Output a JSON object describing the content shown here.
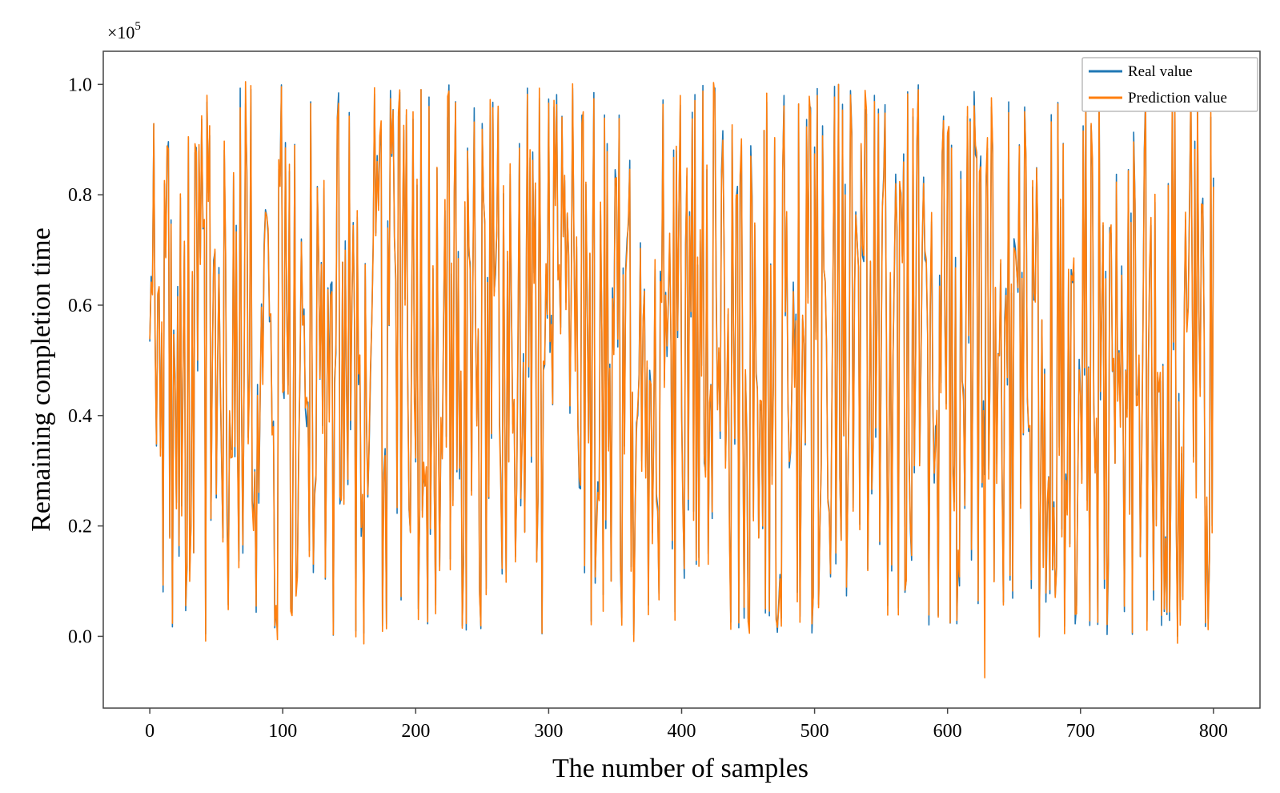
{
  "chart_data": {
    "type": "line",
    "xlabel": "The number of samples",
    "ylabel": "Remaining completion time",
    "y_offset_label": "×10",
    "y_offset_exponent": "5",
    "xlim": [
      -35,
      835
    ],
    "ylim": [
      -0.13,
      1.06
    ],
    "x_ticks": [
      0,
      100,
      200,
      300,
      400,
      500,
      600,
      700,
      800
    ],
    "y_ticks": [
      0.0,
      0.2,
      0.4,
      0.6,
      0.8,
      1.0
    ],
    "y_tick_labels": [
      "0.0",
      "0.2",
      "0.4",
      "0.6",
      "0.8",
      "1.0"
    ],
    "grid": false,
    "legend_position": "top-right",
    "series_generation": {
      "count": 800,
      "min": 0.0,
      "max": 1.0,
      "prediction_min": -0.075
    },
    "series": [
      {
        "name": "Real value",
        "color": "#1f77b4"
      },
      {
        "name": "Prediction value",
        "color": "#ff7f0e"
      }
    ]
  }
}
